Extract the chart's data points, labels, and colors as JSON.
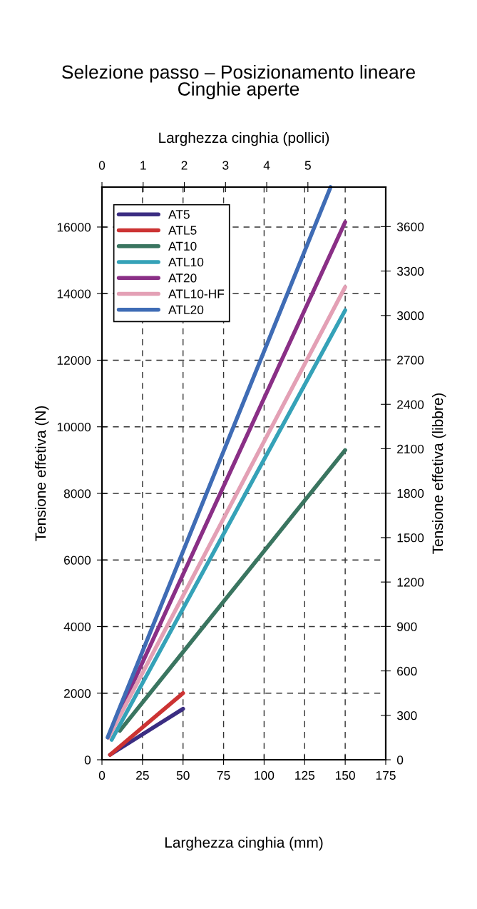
{
  "chart_data": {
    "type": "line",
    "title": "Selezione passo – Posizionamento lineare\nCinghie aperte",
    "xlabel": "Larghezza cinghia (mm)",
    "ylabel": "Tensione effetiva (N)",
    "y2label": "Tensione effetiva (libbre)",
    "x2label": "Larghezza cinghia (pollici)",
    "xlim": [
      0,
      175
    ],
    "xticks": [
      0,
      25,
      50,
      75,
      100,
      125,
      150,
      175
    ],
    "ylim": [
      0,
      17200
    ],
    "yticks": [
      0,
      2000,
      4000,
      6000,
      8000,
      10000,
      12000,
      14000,
      16000
    ],
    "y2lim": [
      0,
      3867
    ],
    "y2ticks": [
      0,
      300,
      600,
      900,
      1200,
      1500,
      1800,
      2100,
      2400,
      2700,
      3000,
      3300,
      3600
    ],
    "x2lim": [
      0,
      6.89
    ],
    "x2ticks": [
      0,
      1,
      2,
      3,
      4,
      5
    ],
    "grid": true,
    "legend": "top left",
    "line_style": "solid",
    "series": [
      {
        "name": "AT5",
        "color": "#3b2d82",
        "x": [
          5,
          50
        ],
        "values": [
          150,
          1530
        ]
      },
      {
        "name": "ATL5",
        "color": "#cc3333",
        "x": [
          5,
          50
        ],
        "values": [
          150,
          2000
        ]
      },
      {
        "name": "AT10",
        "color": "#3a7560",
        "x": [
          11,
          150
        ],
        "values": [
          870,
          9300
        ]
      },
      {
        "name": "ATL10",
        "color": "#35a2b8",
        "x": [
          6,
          150
        ],
        "values": [
          600,
          13500
        ]
      },
      {
        "name": "AT20",
        "color": "#8a2f86",
        "x": [
          4,
          150
        ],
        "values": [
          700,
          16150
        ]
      },
      {
        "name": "ATL10-HF",
        "color": "#e3a0b5",
        "x": [
          4,
          150
        ],
        "values": [
          660,
          14200
        ]
      },
      {
        "name": "ATL20",
        "color": "#3f6cb5",
        "x": [
          3.5,
          141
        ],
        "values": [
          670,
          17200
        ]
      }
    ]
  }
}
